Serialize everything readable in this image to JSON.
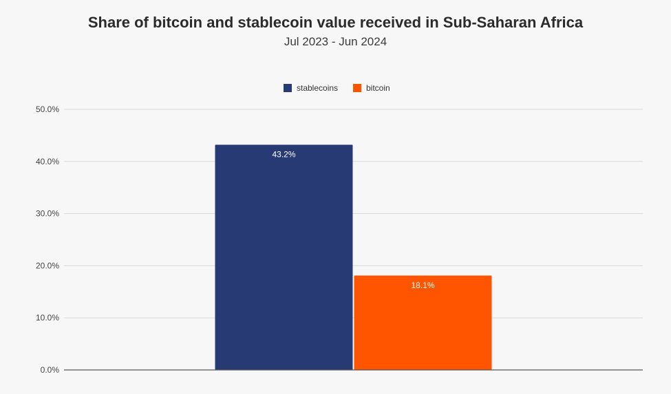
{
  "chart_data": {
    "type": "bar",
    "title": "Share of bitcoin and stablecoin value received in Sub-Saharan Africa",
    "subtitle": "Jul 2023 - Jun 2024",
    "xlabel": "",
    "ylabel": "",
    "ylim": [
      0,
      50
    ],
    "yticks": [
      0,
      10,
      20,
      30,
      40,
      50
    ],
    "ytick_labels": [
      "0.0%",
      "10.0%",
      "20.0%",
      "30.0%",
      "40.0%",
      "50.0%"
    ],
    "grid": true,
    "legend_position": "top-center",
    "series": [
      {
        "name": "stablecoins",
        "value": 43.2,
        "label": "43.2%",
        "color": "#283a73"
      },
      {
        "name": "bitcoin",
        "value": 18.1,
        "label": "18.1%",
        "color": "#ff5500"
      }
    ]
  },
  "colors": {
    "background": "#f7f7f7",
    "grid": "#d9d9d9",
    "axis": "#555555"
  }
}
